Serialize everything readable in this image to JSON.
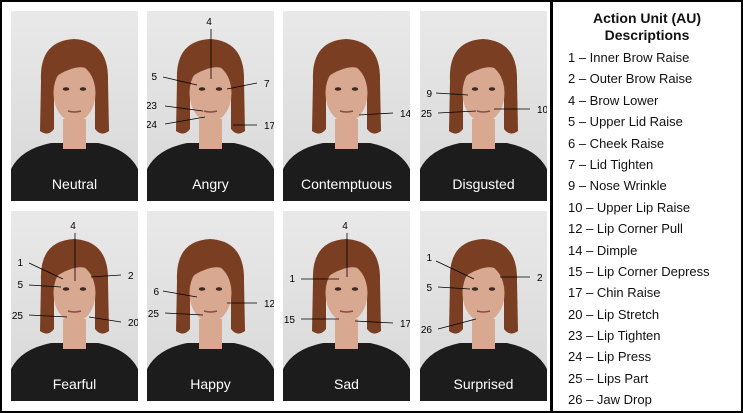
{
  "panels": [
    {
      "label": "Neutral",
      "aus": []
    },
    {
      "label": "Angry",
      "aus": [
        "4",
        "5",
        "7",
        "23",
        "24",
        "17"
      ]
    },
    {
      "label": "Contemptuous",
      "aus": [
        "14"
      ]
    },
    {
      "label": "Disgusted",
      "aus": [
        "9",
        "25",
        "10"
      ]
    },
    {
      "label": "Fearful",
      "aus": [
        "4",
        "1",
        "2",
        "5",
        "25",
        "20"
      ]
    },
    {
      "label": "Happy",
      "aus": [
        "6",
        "12",
        "25"
      ]
    },
    {
      "label": "Sad",
      "aus": [
        "4",
        "1",
        "15",
        "17"
      ]
    },
    {
      "label": "Surprised",
      "aus": [
        "1",
        "2",
        "5",
        "26"
      ]
    }
  ],
  "legend": {
    "title_line1": "Action Unit (AU)",
    "title_line2": "Descriptions",
    "items": [
      "1 – Inner Brow Raise",
      "2 – Outer Brow Raise",
      "4 – Brow Lower",
      "5 – Upper Lid Raise",
      "6 – Cheek Raise",
      "7 – Lid Tighten",
      "9 – Nose Wrinkle",
      "10 – Upper Lip Raise",
      "12 – Lip Corner Pull",
      "14 – Dimple",
      "15 – Lip Corner Depress",
      "17 – Chin Raise",
      "20 – Lip Stretch",
      "23 – Lip Tighten",
      "24 – Lip Press",
      "25 – Lips Part",
      "26 – Jaw Drop"
    ]
  },
  "colors": {
    "shirt": "#1c1c1c",
    "hair": "#7a3f22",
    "skin": "#d9a891",
    "bg": "#e2e2e2",
    "frame": "#000000"
  }
}
